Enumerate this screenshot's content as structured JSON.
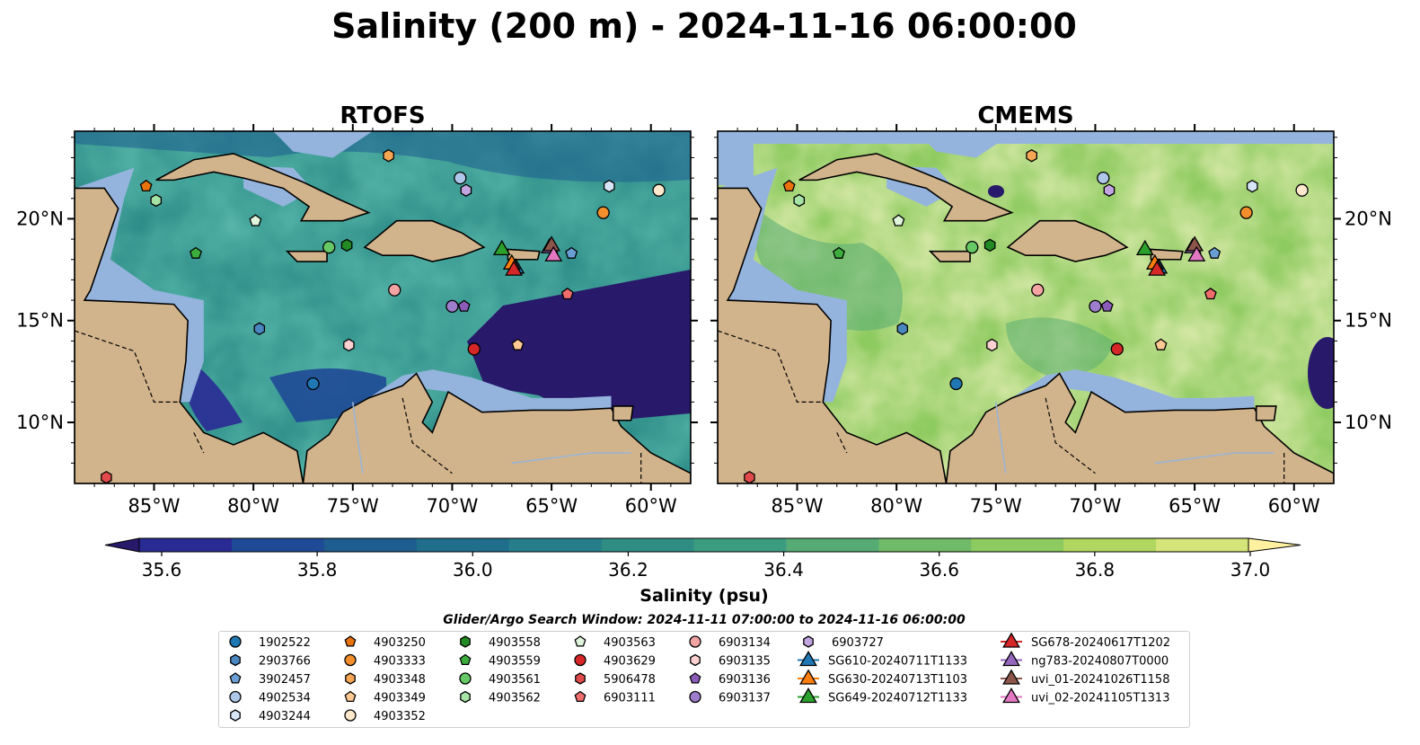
{
  "figure": {
    "title": "Salinity (200 m) - 2024-11-16 06:00:00",
    "colorbar_label": "Salinity (psu)",
    "colorbar_ticks": [
      "35.6",
      "35.8",
      "36.0",
      "36.2",
      "36.4",
      "36.6",
      "36.8",
      "37.0"
    ],
    "search_window": "Glider/Argo Search Window: 2024-11-11 07:00:00 to 2024-11-16 06:00:00"
  },
  "colors": {
    "land": "#d2b48c",
    "shelf": "#94b4de",
    "deep_low": "#28196b",
    "colormap": [
      "#28196b",
      "#2a2a94",
      "#1f4a96",
      "#1d5d8f",
      "#1f6f8c",
      "#277e8b",
      "#2f8d84",
      "#3c9c7f",
      "#55ab73",
      "#6fbb68",
      "#8dca5f",
      "#b2d760",
      "#d6e57a",
      "#fff1a0"
    ]
  },
  "chart_data": [
    {
      "type": "heatmap",
      "panel_title": "RTOFS",
      "field": "Salinity (psu)",
      "colorbar_range": [
        35.6,
        37.0
      ],
      "xlim": [
        -89,
        -58
      ],
      "ylim": [
        7,
        24.3
      ],
      "xticks": [
        "85°W",
        "80°W",
        "75°W",
        "70°W",
        "65°W",
        "60°W"
      ],
      "yticks": [],
      "mean_field_level": "lower (blues/greens, dark 35.6 in southern and eastern Caribbean)"
    },
    {
      "type": "heatmap",
      "panel_title": "CMEMS",
      "field": "Salinity (psu)",
      "colorbar_range": [
        35.6,
        37.0
      ],
      "xlim": [
        -89,
        -58
      ],
      "ylim": [
        7,
        24.3
      ],
      "xticks": [
        "85°W",
        "80°W",
        "75°W",
        "70°W",
        "65°W",
        "60°W"
      ],
      "yticks": [
        "20°N",
        "15°N",
        "10°N"
      ],
      "mean_field_level": "higher (greens/yellows ~36.6-37.0)"
    }
  ],
  "observations": [
    {
      "id": "1902522",
      "marker": "circle",
      "color": "#1f77b4",
      "lon": -77.0,
      "lat": 11.9
    },
    {
      "id": "2903766",
      "marker": "hexagon",
      "color": "#4a86c0",
      "lon": -79.7,
      "lat": 14.6
    },
    {
      "id": "3902457",
      "marker": "pentagon",
      "color": "#6a9fd6",
      "lon": -64.0,
      "lat": 18.3
    },
    {
      "id": "4902534",
      "marker": "circle",
      "color": "#aec7e8",
      "lon": -69.6,
      "lat": 22.0
    },
    {
      "id": "4903244",
      "marker": "hexagon",
      "color": "#d6e6f7",
      "lon": -62.1,
      "lat": 21.6
    },
    {
      "id": "4903250",
      "marker": "pentagon",
      "color": "#e8720c",
      "lon": -85.4,
      "lat": 21.6
    },
    {
      "id": "4903333",
      "marker": "circle",
      "color": "#f28e2b",
      "lon": -62.4,
      "lat": 20.3
    },
    {
      "id": "4903348",
      "marker": "hexagon",
      "color": "#f7a654",
      "lon": -73.2,
      "lat": 23.1
    },
    {
      "id": "4903349",
      "marker": "pentagon",
      "color": "#ffc993",
      "lon": -66.7,
      "lat": 13.8
    },
    {
      "id": "4903352",
      "marker": "circle",
      "color": "#ffe8cc",
      "lon": -59.6,
      "lat": 21.4
    },
    {
      "id": "4903558",
      "marker": "hexagon",
      "color": "#238b23",
      "lon": -75.3,
      "lat": 18.7
    },
    {
      "id": "4903559",
      "marker": "pentagon",
      "color": "#3cad3c",
      "lon": -82.9,
      "lat": 18.3
    },
    {
      "id": "4903561",
      "marker": "circle",
      "color": "#66c966",
      "lon": -76.2,
      "lat": 18.6
    },
    {
      "id": "4903562",
      "marker": "hexagon",
      "color": "#a6e3a6",
      "lon": -84.9,
      "lat": 20.9
    },
    {
      "id": "4903563",
      "marker": "pentagon",
      "color": "#dff5dc",
      "lon": -79.9,
      "lat": 19.9
    },
    {
      "id": "4903629",
      "marker": "circle",
      "color": "#d62728",
      "lon": -68.9,
      "lat": 13.6
    },
    {
      "id": "5906478",
      "marker": "hexagon",
      "color": "#e04a4a",
      "lon": -87.4,
      "lat": 7.3
    },
    {
      "id": "6903111",
      "marker": "pentagon",
      "color": "#ee6c6c",
      "lon": -64.2,
      "lat": 16.3
    },
    {
      "id": "6903134",
      "marker": "circle",
      "color": "#f4a3a3",
      "lon": -72.9,
      "lat": 16.5
    },
    {
      "id": "6903135",
      "marker": "hexagon",
      "color": "#fbd0d0",
      "lon": -75.2,
      "lat": 13.8
    },
    {
      "id": "6903136",
      "marker": "pentagon",
      "color": "#8a5cb8",
      "lon": -69.4,
      "lat": 15.7
    },
    {
      "id": "6903137",
      "marker": "circle",
      "color": "#9e7dcc",
      "lon": -70.0,
      "lat": 15.7
    },
    {
      "id": "6903727",
      "marker": "hexagon",
      "color": "#c2a5e0",
      "lon": -69.3,
      "lat": 21.4
    },
    {
      "id": "SG610-20240711T1133",
      "marker": "triangle",
      "color": "#1f77b4",
      "lon": -66.8,
      "lat": 17.6
    },
    {
      "id": "SG630-20240713T1103",
      "marker": "triangle",
      "color": "#ff7f0e",
      "lon": -67.0,
      "lat": 17.8
    },
    {
      "id": "SG649-20240712T1133",
      "marker": "triangle",
      "color": "#2ca02c",
      "lon": -67.5,
      "lat": 18.5
    },
    {
      "id": "SG678-20240617T1202",
      "marker": "triangle",
      "color": "#d62728",
      "lon": -66.9,
      "lat": 17.5
    },
    {
      "id": "ng783-20240807T0000",
      "marker": "triangle",
      "color": "#9467bd",
      "lon": -65.1,
      "lat": 18.6
    },
    {
      "id": "uvi_01-20241026T1158",
      "marker": "triangle",
      "color": "#8c564b",
      "lon": -65.0,
      "lat": 18.7
    },
    {
      "id": "uvi_02-20241105T1313",
      "marker": "triangle",
      "color": "#e377c2",
      "lon": -64.9,
      "lat": 18.2
    }
  ]
}
